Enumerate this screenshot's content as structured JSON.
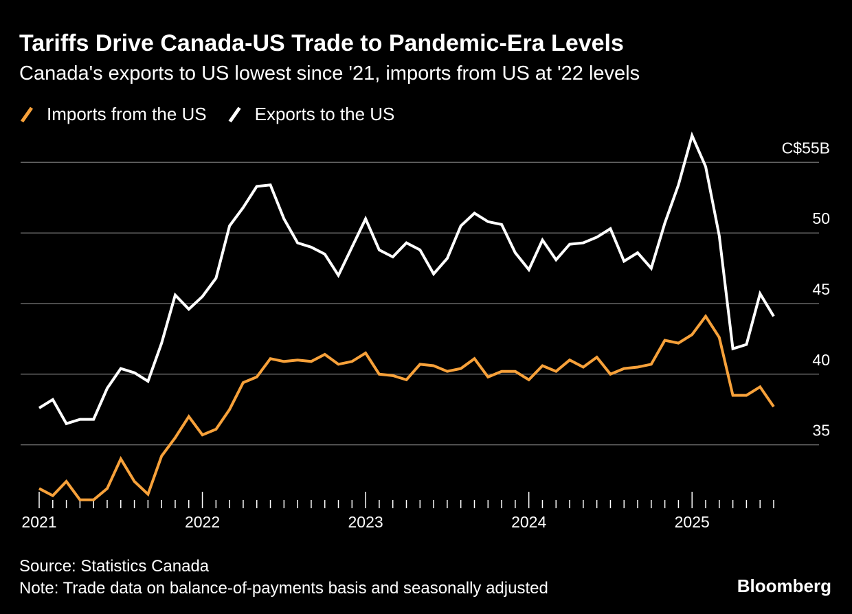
{
  "chart_data": {
    "type": "line",
    "title": "Tariffs Drive Canada-US Trade to Pandemic-Era Levels",
    "subtitle": "Canada's exports to US lowest since '21, imports from US at '22 levels",
    "categories": [
      "2021",
      null,
      null,
      null,
      null,
      null,
      null,
      null,
      null,
      null,
      null,
      null,
      "2022",
      null,
      null,
      null,
      null,
      null,
      null,
      null,
      null,
      null,
      null,
      null,
      "2023",
      null,
      null,
      null,
      null,
      null,
      null,
      null,
      null,
      null,
      null,
      null,
      "2024",
      null,
      null,
      null,
      null,
      null,
      null,
      null,
      null,
      null,
      null,
      null,
      "2025",
      null,
      null,
      null,
      null,
      null,
      null
    ],
    "series": [
      {
        "name": "Imports from the US",
        "color": "#f7a13a",
        "values": [
          31.9,
          31.4,
          32.4,
          31.1,
          31.1,
          31.9,
          34.0,
          32.4,
          31.5,
          34.2,
          35.5,
          37.0,
          35.7,
          36.1,
          37.5,
          39.4,
          39.8,
          41.1,
          40.9,
          41.0,
          40.9,
          41.4,
          40.7,
          40.9,
          41.5,
          40.0,
          39.9,
          39.6,
          40.7,
          40.6,
          40.2,
          40.4,
          41.1,
          39.8,
          40.2,
          40.2,
          39.6,
          40.6,
          40.2,
          41.0,
          40.5,
          41.2,
          40.0,
          40.4,
          40.5,
          40.7,
          42.4,
          42.2,
          42.8,
          44.1,
          42.6,
          38.5,
          38.5,
          39.1,
          37.7
        ]
      },
      {
        "name": "Exports to the US",
        "color": "#ffffff",
        "values": [
          37.6,
          38.2,
          36.5,
          36.8,
          36.8,
          39.0,
          40.4,
          40.1,
          39.5,
          42.2,
          45.6,
          44.6,
          45.5,
          46.8,
          50.5,
          51.8,
          53.3,
          53.4,
          51.0,
          49.3,
          49.0,
          48.5,
          47.0,
          49.0,
          51.0,
          48.8,
          48.3,
          49.3,
          48.8,
          47.1,
          48.2,
          50.5,
          51.4,
          50.8,
          50.6,
          48.6,
          47.4,
          49.5,
          48.1,
          49.2,
          49.3,
          49.7,
          50.3,
          48.0,
          48.6,
          47.5,
          50.7,
          53.4,
          56.9,
          54.7,
          49.8,
          41.8,
          42.1,
          45.7,
          44.1
        ]
      }
    ],
    "ylim": [
      30.7,
      57.5
    ],
    "yticks": [
      35,
      40,
      45,
      50,
      {
        "value": 55,
        "label": "C$55B"
      }
    ],
    "grid": true,
    "source": "Source: Statistics Canada",
    "note": "Note: Trade data on balance-of-payments basis and seasonally adjusted",
    "brand": "Bloomberg"
  }
}
